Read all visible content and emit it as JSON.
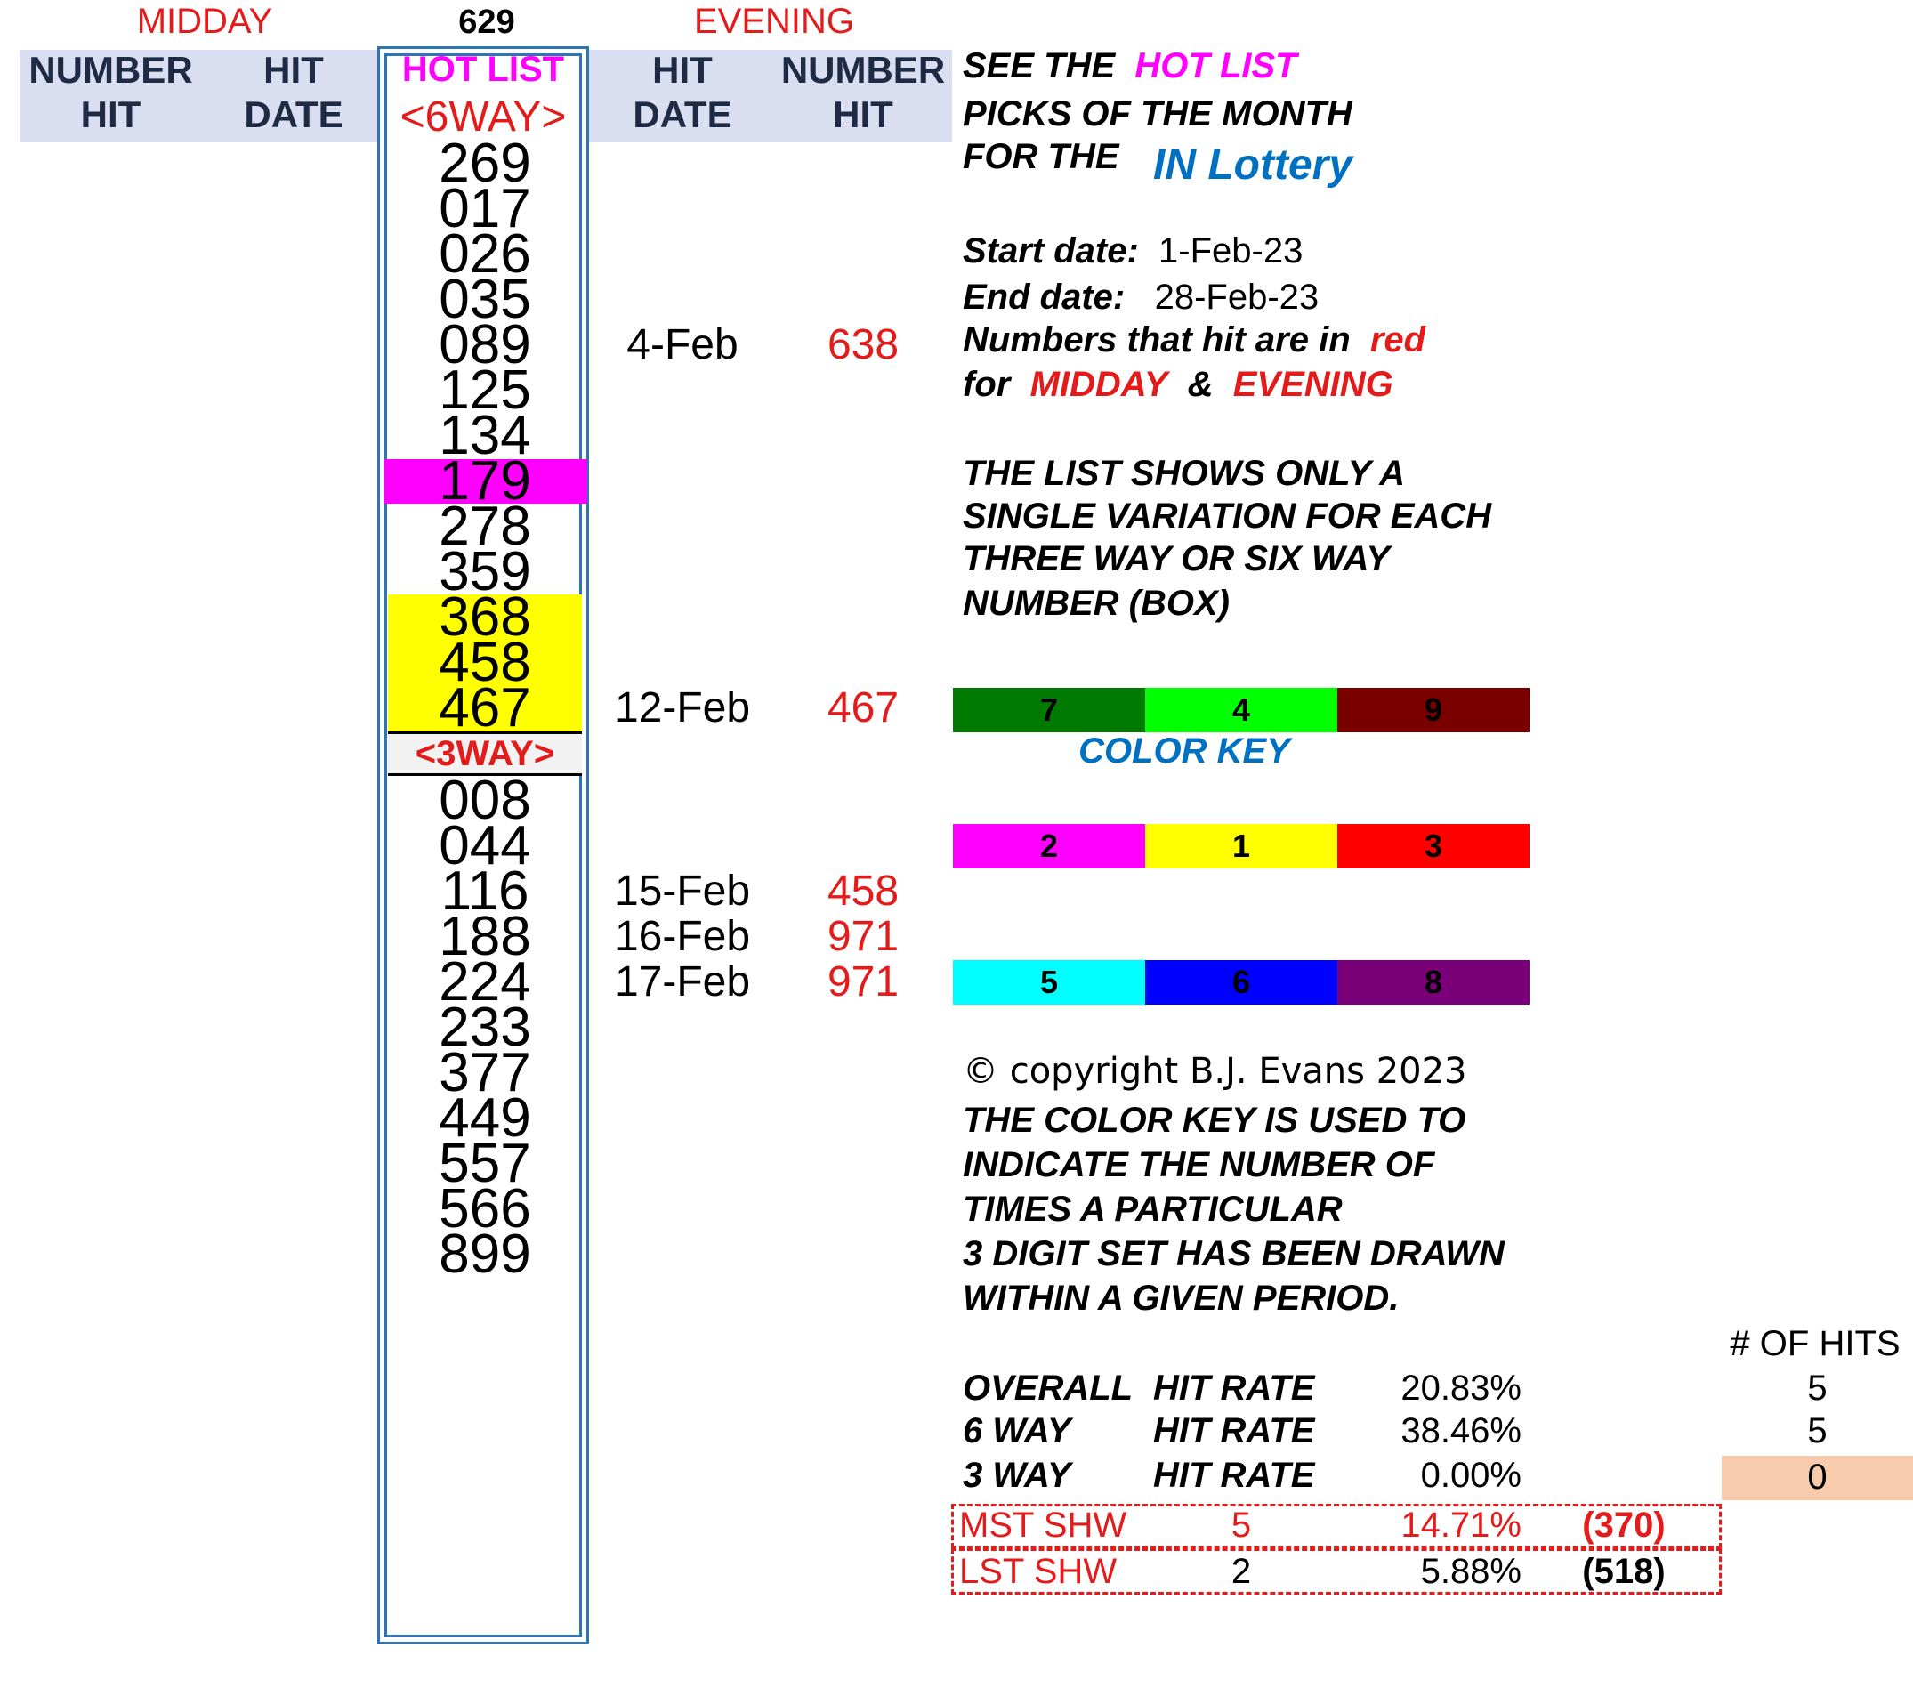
{
  "top": {
    "midday": "MIDDAY",
    "code": "629",
    "evening": "EVENING"
  },
  "headers": {
    "left_number": [
      "NUMBER",
      "HIT"
    ],
    "left_hit": [
      "HIT",
      "DATE"
    ],
    "hot_list": "HOT LIST",
    "six_way": "<6WAY>",
    "right_hit": [
      "HIT",
      "DATE"
    ],
    "right_number": [
      "NUMBER",
      "HIT"
    ]
  },
  "six_way_numbers": [
    "269",
    "017",
    "026",
    "035",
    "089",
    "125",
    "134",
    "179",
    "278",
    "359",
    "368",
    "458",
    "467"
  ],
  "three_way_label": "<3WAY>",
  "three_way_numbers": [
    "008",
    "044",
    "116",
    "188",
    "224",
    "233",
    "377",
    "449",
    "557",
    "566",
    "899"
  ],
  "evening_hits": [
    {
      "date": "4-Feb",
      "number": "638"
    },
    {
      "date": "12-Feb",
      "number": "467"
    },
    {
      "date": "15-Feb",
      "number": "458"
    },
    {
      "date": "16-Feb",
      "number": "971"
    },
    {
      "date": "17-Feb",
      "number": "971"
    }
  ],
  "info": {
    "see_the": "SEE THE",
    "hot_list": "HOT LIST",
    "picks": "PICKS OF THE MONTH",
    "for_the": "FOR THE",
    "lottery": "IN Lottery",
    "start_label": "Start date:",
    "start_value": "1-Feb-23",
    "end_label": "End date:",
    "end_value": "28-Feb-23",
    "numbers_hit": "Numbers that hit are in",
    "red_word": "red",
    "for_word": "for",
    "midday": "MIDDAY",
    "amp": "&",
    "evening": "EVENING",
    "list_note": [
      "THE LIST SHOWS ONLY A",
      "SINGLE VARIATION FOR EACH",
      "THREE WAY OR SIX WAY",
      "NUMBER (BOX)"
    ],
    "color_key_label": "COLOR KEY",
    "copyright": "© copyright B.J. Evans 2023",
    "key_note": [
      "THE COLOR KEY IS USED TO",
      "INDICATE THE NUMBER OF",
      "TIMES A PARTICULAR",
      "3 DIGIT SET HAS BEEN DRAWN",
      "WITHIN A GIVEN PERIOD."
    ]
  },
  "color_key": [
    [
      {
        "label": "7",
        "color": "#007a00"
      },
      {
        "label": "4",
        "color": "#00ff00"
      },
      {
        "label": "9",
        "color": "#7a0000"
      }
    ],
    [
      {
        "label": "2",
        "color": "#ff00ff"
      },
      {
        "label": "1",
        "color": "#ffff00"
      },
      {
        "label": "3",
        "color": "#ff0000"
      }
    ],
    [
      {
        "label": "5",
        "color": "#00ffff"
      },
      {
        "label": "6",
        "color": "#0000ff"
      },
      {
        "label": "8",
        "color": "#7a007a"
      }
    ]
  ],
  "stats": {
    "hits_header": "# OF HITS",
    "rows": [
      {
        "name": "OVERALL",
        "label": "HIT RATE",
        "rate": "20.83%",
        "hits": "5"
      },
      {
        "name": "6 WAY",
        "label": "HIT RATE",
        "rate": "38.46%",
        "hits": "5"
      },
      {
        "name": "3 WAY",
        "label": "HIT RATE",
        "rate": "0.00%",
        "hits": "0"
      }
    ],
    "mst": {
      "label": "MST SHW",
      "count": "5",
      "pct": "14.71%",
      "num": "(370)"
    },
    "lst": {
      "label": "LST SHW",
      "count": "2",
      "pct": "5.88%",
      "num": "(518)"
    }
  },
  "colors": {
    "highlight_magenta": "#ff00ff",
    "highlight_yellow": "#ffff00",
    "header_band": "#d9dff0",
    "frame_blue": "#2e75b6",
    "hits_zero_bg": "#f8cbad",
    "red_text": "#e31b1b"
  }
}
